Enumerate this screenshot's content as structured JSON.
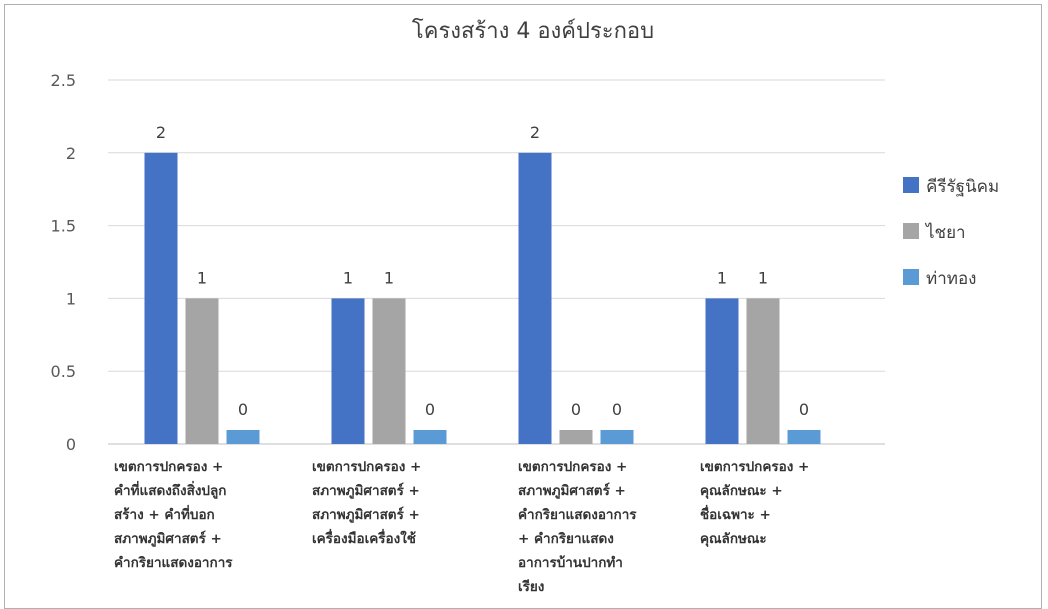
{
  "chart_data": {
    "type": "bar",
    "title": "โครงสร้าง 4 องค์ประกอบ",
    "categories": [
      "เขตการปกครอง +\nคำที่แสดงถึงสิ่งปลูก\nสร้าง + คำที่บอก\nสภาพภูมิศาสตร์ +\nคำกริยาแสดงอาการ",
      "เขตการปกครอง +\nสภาพภูมิศาสตร์ +\nสภาพภูมิศาสตร์ +\nเครื่องมือเครื่องใช้",
      "เขตการปกครอง +\nสภาพภูมิศาสตร์ +\nคำกริยาแสดงอาการ\n+ คำกริยาแสดง\nอาการบ้านปากทำ\nเรียง",
      "เขตการปกครอง +\nคุณลักษณะ +\nชื่อเฉพาะ  +\nคุณลักษณะ"
    ],
    "series": [
      {
        "name": "คีรีรัฐนิคม",
        "color": "#4472c4",
        "values": [
          2,
          1,
          2,
          1
        ]
      },
      {
        "name": "ไชยา",
        "color": "#a5a5a5",
        "values": [
          1,
          1,
          0,
          1
        ]
      },
      {
        "name": "ท่าทอง",
        "color": "#5b9bd5",
        "values": [
          0,
          0,
          0,
          0
        ]
      }
    ],
    "ylim": [
      0,
      2.5
    ],
    "yticks": [
      "0",
      "0.5",
      "1",
      "1.5",
      "2",
      "2.5"
    ],
    "grid": true,
    "legend": "right"
  }
}
